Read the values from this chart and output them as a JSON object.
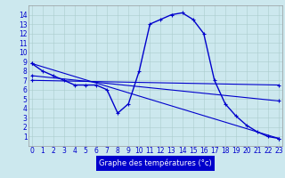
{
  "xlabel": "Graphe des températures (°c)",
  "background_color": "#cce8ee",
  "line_color": "#0000cc",
  "series_main": {
    "x": [
      0,
      1,
      2,
      3,
      4,
      5,
      6,
      7,
      8,
      9,
      10,
      11,
      12,
      13,
      14,
      15,
      16,
      17,
      18,
      19,
      20,
      21,
      22,
      23
    ],
    "y": [
      8.8,
      8.0,
      7.5,
      7.0,
      6.5,
      6.5,
      6.5,
      6.0,
      3.5,
      4.5,
      8.0,
      13.0,
      13.5,
      14.0,
      14.2,
      13.5,
      12.0,
      7.0,
      4.5,
      3.2,
      2.2,
      1.5,
      1.0,
      0.8
    ]
  },
  "series_line1": {
    "x": [
      0,
      23
    ],
    "y": [
      8.8,
      0.8
    ]
  },
  "series_line2": {
    "x": [
      0,
      23
    ],
    "y": [
      7.5,
      4.8
    ]
  },
  "series_line3": {
    "x": [
      0,
      23
    ],
    "y": [
      7.0,
      6.5
    ]
  },
  "ylim_min": 0,
  "ylim_max": 15,
  "xlim_min": 0,
  "xlim_max": 23,
  "yticks": [
    1,
    2,
    3,
    4,
    5,
    6,
    7,
    8,
    9,
    10,
    11,
    12,
    13,
    14
  ],
  "xticks": [
    0,
    1,
    2,
    3,
    4,
    5,
    6,
    7,
    8,
    9,
    10,
    11,
    12,
    13,
    14,
    15,
    16,
    17,
    18,
    19,
    20,
    21,
    22,
    23
  ],
  "tick_fontsize": 5.5,
  "xlabel_fontsize": 6,
  "grid_color": "#aacccc",
  "xlabel_bg": "#0000cc",
  "xlabel_fg": "#ffffff"
}
